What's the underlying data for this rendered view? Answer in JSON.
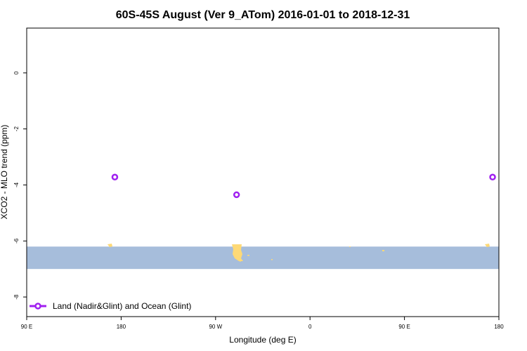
{
  "chart_data": {
    "type": "scatter",
    "title": "60S-45S August (Ver 9_ATom)   2016-01-01 to 2018-12-31",
    "xlabel": "Longitude (deg E)",
    "ylabel": "XCO2 - MLO trend (ppm)",
    "x_ticks": [
      {
        "value": 90,
        "label": "90 E"
      },
      {
        "value": 180,
        "label": "180"
      },
      {
        "value": 270,
        "label": "90 W"
      },
      {
        "value": 360,
        "label": "0"
      },
      {
        "value": 450,
        "label": "90 E"
      },
      {
        "value": 540,
        "label": "180"
      }
    ],
    "y_ticks": [
      0,
      -2,
      -4,
      -6,
      -8
    ],
    "xlim": [
      90,
      540
    ],
    "ylim": [
      -8.7,
      1.6
    ],
    "grid": false,
    "legend_position": "bottom-left",
    "series": [
      {
        "name": "Land (Nadir&Glint) and Ocean (Glint)",
        "color": "#a020f0",
        "marker": "open-circle",
        "points": [
          {
            "x": 174,
            "y": -3.72
          },
          {
            "x": 290,
            "y": -4.35
          },
          {
            "x": 534,
            "y": -3.72
          }
        ]
      }
    ],
    "background_map": {
      "ocean_color": "#a6bddb",
      "land_color": "#fed976",
      "lat_band": "60S-45S",
      "band_y_range": [
        -7.0,
        -6.2
      ]
    }
  }
}
